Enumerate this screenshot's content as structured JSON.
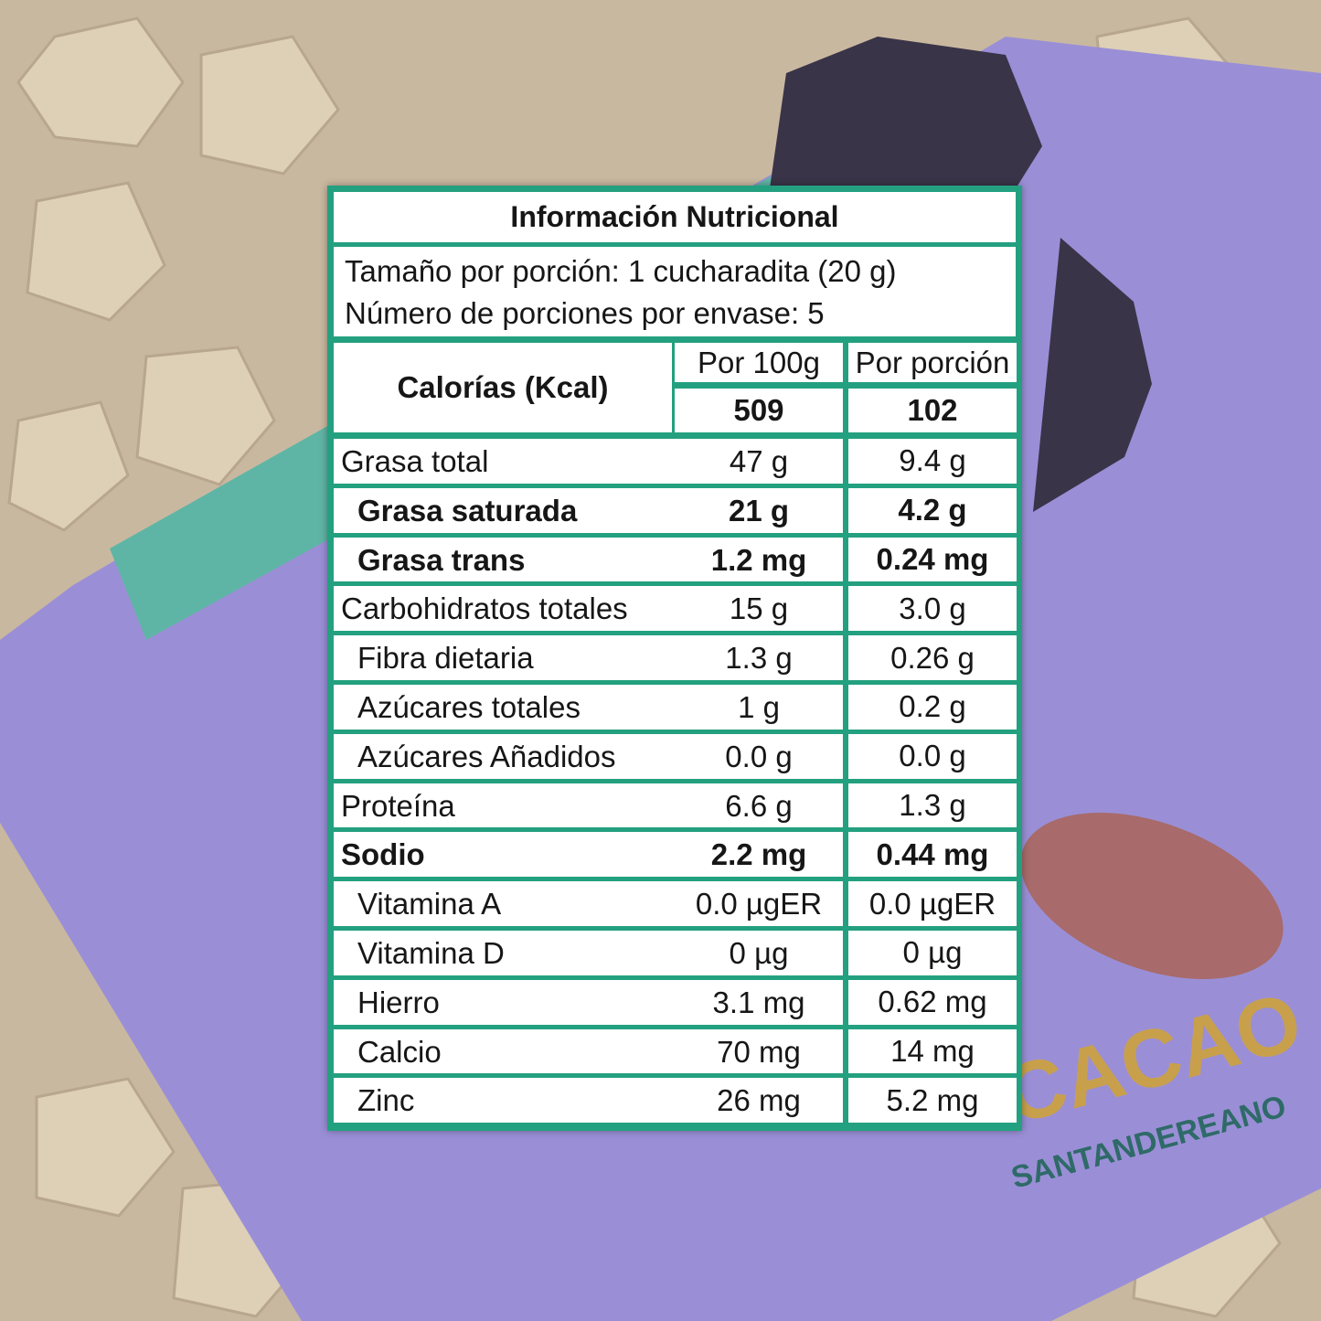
{
  "background": {
    "brand_text": "CACAO",
    "brand_subtext": "SANTANDEREANO"
  },
  "label": {
    "title": "Información Nutricional",
    "serving_size": "Tamaño por porción: 1 cucharadita (20 g)",
    "servings": "Número de porciones por envase: 5",
    "calories_label": "Calorías (Kcal)",
    "column_headers": [
      "Por 100g",
      "Por porción"
    ],
    "calories": [
      "509",
      "102"
    ],
    "rows": [
      [
        "Grasa total",
        "47 g",
        "9.4 g"
      ],
      [
        "Grasa saturada",
        "21 g",
        "4.2 g"
      ],
      [
        "Grasa trans",
        "1.2 mg",
        "0.24 mg"
      ],
      [
        "Carbohidratos totales",
        "15 g",
        "3.0 g"
      ],
      [
        "Fibra dietaria",
        "1.3 g",
        "0.26 g"
      ],
      [
        "Azúcares totales",
        "1 g",
        "0.2 g"
      ],
      [
        "Azúcares Añadidos",
        "0.0 g",
        "0.0 g"
      ],
      [
        "Proteína",
        "6.6 g",
        "1.3 g"
      ],
      [
        "Sodio",
        "2.2 mg",
        "0.44 mg"
      ],
      [
        "Vitamina A",
        "0.0 µgER",
        "0.0 µgER"
      ],
      [
        "Vitamina D",
        "0 µg",
        "0 µg"
      ],
      [
        "Hierro",
        "3.1 mg",
        "0.62 mg"
      ],
      [
        "Calcio",
        "70 mg",
        "14 mg"
      ],
      [
        "Zinc",
        "26 mg",
        "5.2 mg"
      ]
    ]
  }
}
